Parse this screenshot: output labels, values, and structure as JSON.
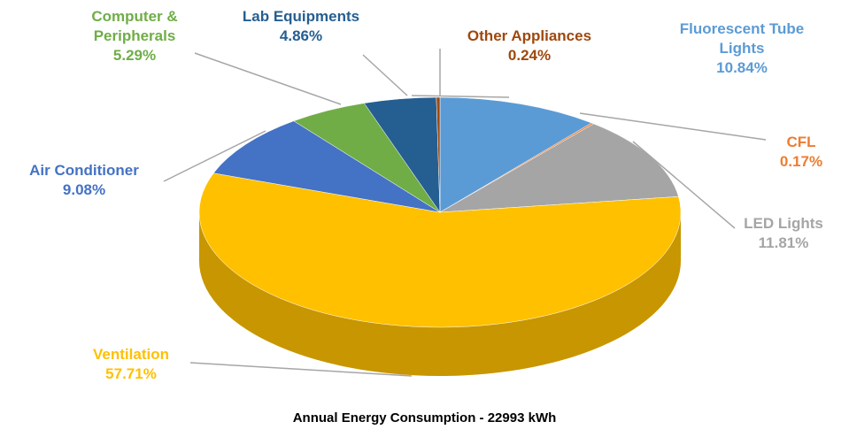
{
  "chart_data": {
    "type": "pie",
    "title": "Annual Energy Consumption - 22993 kWh",
    "categories": [
      "Fluorescent Tube Lights",
      "CFL",
      "LED Lights",
      "Ventilation",
      "Air Conditioner",
      "Computer & Peripherals",
      "Lab Equipments",
      "Other Appliances"
    ],
    "values": [
      10.84,
      0.17,
      11.81,
      57.71,
      9.08,
      5.29,
      4.86,
      0.24
    ],
    "value_labels": [
      "10.84%",
      "0.17%",
      "11.81%",
      "57.71%",
      "9.08%",
      "5.29%",
      "4.86%",
      "0.24%"
    ],
    "colors": [
      "#5b9bd5",
      "#ed7d31",
      "#a5a5a5",
      "#ffc000",
      "#4472c4",
      "#70ad47",
      "#255e91",
      "#9e480e"
    ]
  }
}
